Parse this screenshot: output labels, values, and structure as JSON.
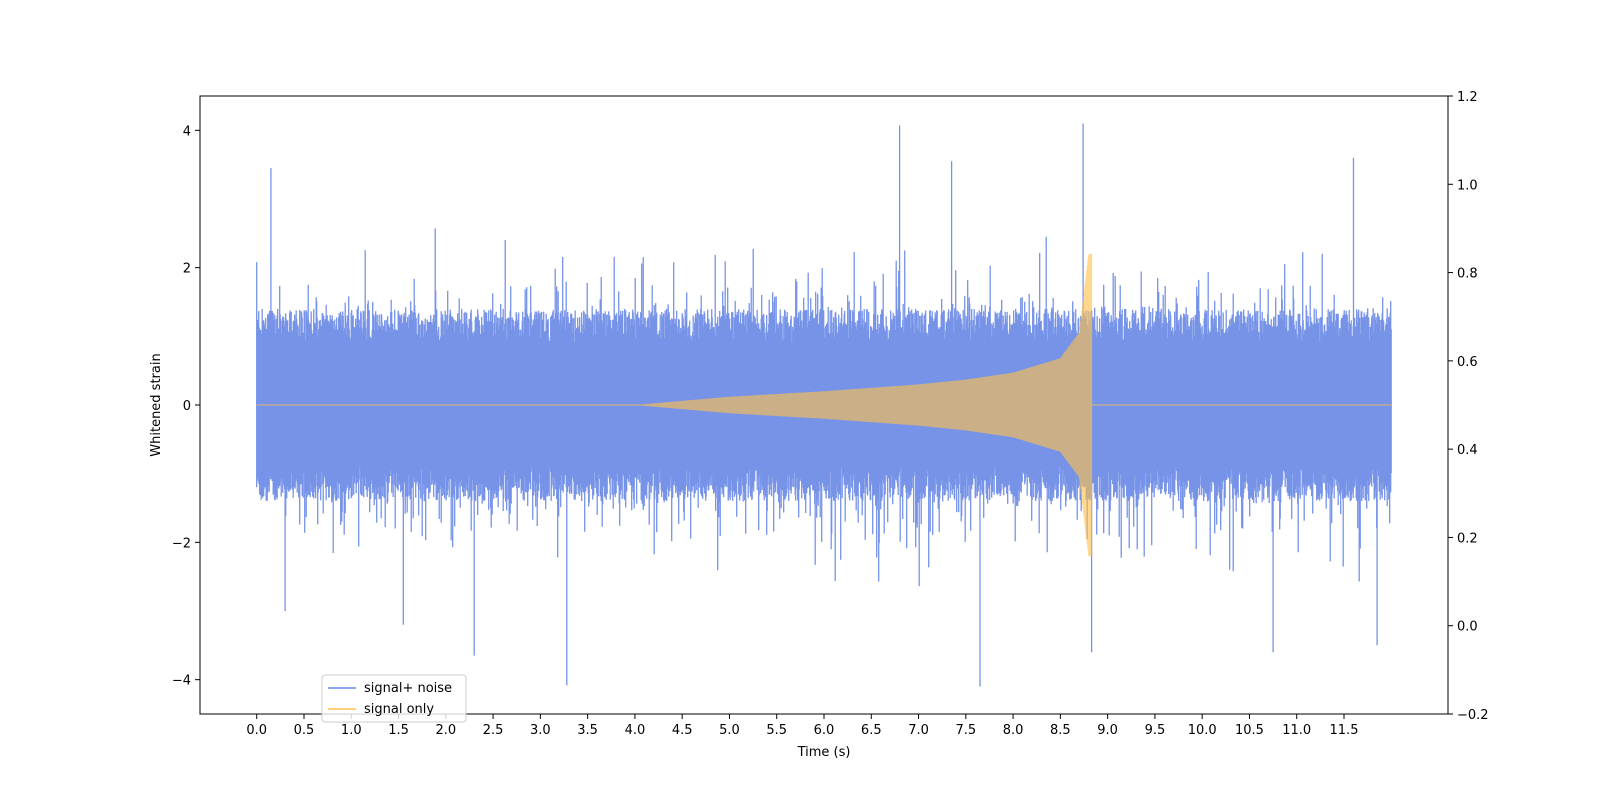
{
  "chart_data": {
    "type": "line",
    "title": "",
    "xlabel": "Time (s)",
    "ylabel": "Whitened strain",
    "xlim": [
      -0.6,
      12.6
    ],
    "ylim": [
      -4.5,
      4.5
    ],
    "y2lim": [
      -0.2,
      1.2
    ],
    "x_ticks": [
      0.0,
      0.5,
      1.0,
      1.5,
      2.0,
      2.5,
      3.0,
      3.5,
      4.0,
      4.5,
      5.0,
      5.5,
      6.0,
      6.5,
      7.0,
      7.5,
      8.0,
      8.5,
      9.0,
      9.5,
      10.0,
      10.5,
      11.0,
      11.5
    ],
    "x_tick_labels": [
      "0.0",
      "0.5",
      "1.0",
      "1.5",
      "2.0",
      "2.5",
      "3.0",
      "3.5",
      "4.0",
      "4.5",
      "5.0",
      "5.5",
      "6.0",
      "6.5",
      "7.0",
      "7.5",
      "8.0",
      "8.5",
      "9.0",
      "9.5",
      "10.0",
      "10.5",
      "11.0",
      "11.5"
    ],
    "y_ticks": [
      -4,
      -2,
      0,
      2,
      4
    ],
    "y_tick_labels": [
      "−4",
      "−2",
      "0",
      "2",
      "4"
    ],
    "y2_ticks": [
      -0.2,
      0.0,
      0.2,
      0.4,
      0.6,
      0.8,
      1.0,
      1.2
    ],
    "y2_tick_labels": [
      "−0.2",
      "0.0",
      "0.2",
      "0.4",
      "0.6",
      "0.8",
      "1.0",
      "1.2"
    ],
    "grid": false,
    "legend_position": "lower-left",
    "series": [
      {
        "name": "signal+ noise",
        "color": "#6a8ae6",
        "description_values": {
          "x_start": 0.0,
          "x_end": 12.0,
          "typical_envelope": [
            -2.0,
            2.0
          ],
          "peak_max": 4.1,
          "peak_min": -4.1,
          "peaks": [
            {
              "x": 0.15,
              "y": 3.45
            },
            {
              "x": 0.3,
              "y": -3.0
            },
            {
              "x": 1.55,
              "y": -3.2
            },
            {
              "x": 2.3,
              "y": -3.65
            },
            {
              "x": 3.28,
              "y": -4.08
            },
            {
              "x": 6.8,
              "y": 4.07
            },
            {
              "x": 7.35,
              "y": 3.55
            },
            {
              "x": 7.65,
              "y": -4.1
            },
            {
              "x": 8.74,
              "y": 4.1
            },
            {
              "x": 8.83,
              "y": -3.6
            },
            {
              "x": 10.75,
              "y": -3.6
            },
            {
              "x": 11.6,
              "y": 3.6
            },
            {
              "x": 11.85,
              "y": -3.5
            }
          ]
        }
      },
      {
        "name": "signal only",
        "color": "#ffc04a",
        "description_values": {
          "x_start": 0.0,
          "x_end": 12.0,
          "chirp_start": 4.0,
          "merger_time": 8.83,
          "envelope": [
            {
              "x": 4.0,
              "amp": 0.0
            },
            {
              "x": 5.0,
              "amp": 0.12
            },
            {
              "x": 6.0,
              "amp": 0.2
            },
            {
              "x": 7.0,
              "amp": 0.3
            },
            {
              "x": 7.5,
              "amp": 0.37
            },
            {
              "x": 8.0,
              "amp": 0.47
            },
            {
              "x": 8.5,
              "amp": 0.68
            },
            {
              "x": 8.7,
              "amp": 1.05
            },
            {
              "x": 8.8,
              "amp": 2.2
            }
          ]
        }
      }
    ]
  }
}
